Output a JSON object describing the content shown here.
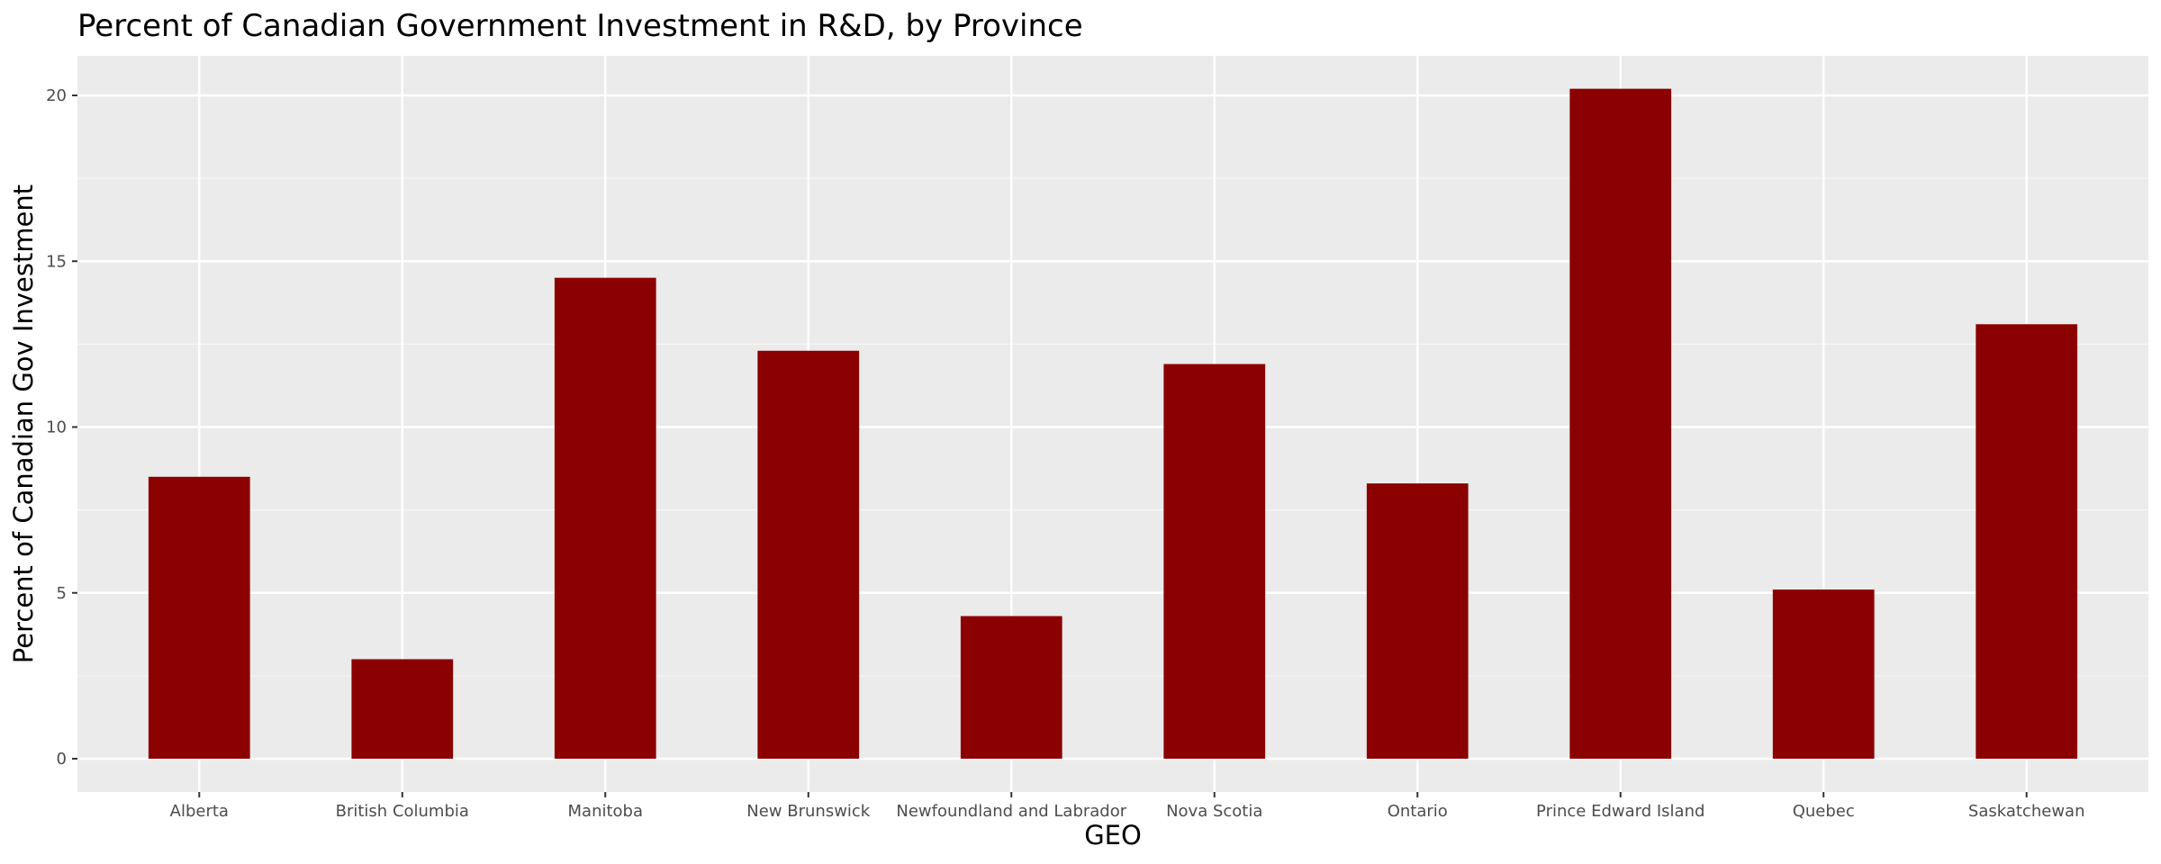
{
  "chart_data": {
    "type": "bar",
    "title": "Percent of Canadian Government Investment in R&D, by Province",
    "xlabel": "GEO",
    "ylabel": "Percent of Canadian Gov Investment",
    "categories": [
      "Alberta",
      "British Columbia",
      "Manitoba",
      "New Brunswick",
      "Newfoundland and Labrador",
      "Nova Scotia",
      "Ontario",
      "Prince Edward Island",
      "Quebec",
      "Saskatchewan"
    ],
    "values": [
      8.5,
      3.0,
      14.5,
      12.3,
      4.3,
      11.9,
      8.3,
      20.2,
      5.1,
      13.1
    ],
    "ylim": [
      0,
      21
    ],
    "yticks": [
      0,
      5,
      10,
      15,
      20
    ],
    "grid": true,
    "colors": {
      "bar": "#8B0000",
      "panel": "#EBEBEB",
      "grid_major": "#FFFFFF",
      "grid_minor": "#F5F5F5",
      "tick": "#333333"
    }
  }
}
